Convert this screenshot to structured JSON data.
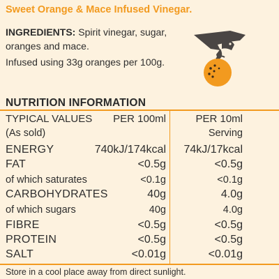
{
  "title": "Sweet Orange & Mace Infused Vinegar.",
  "ingredients": {
    "label": "INGREDIENTS:",
    "text": " Spirit vinegar, sugar, oranges and mace."
  },
  "infused_note": "Infused using 33g oranges per 100g.",
  "nutrition": {
    "heading": "NUTRITION INFORMATION",
    "header": {
      "name": "TYPICAL VALUES",
      "per100": "PER 100ml",
      "per10": "PER 10ml"
    },
    "subheader": {
      "name": "(As sold)",
      "per100": "",
      "per10": "Serving"
    },
    "rows": [
      {
        "name": "ENERGY",
        "per100": "740kJ/174kcal",
        "per10": "74kJ/17kcal"
      },
      {
        "name": "FAT",
        "per100": "<0.5g",
        "per10": "<0.5g"
      },
      {
        "name": "of which saturates",
        "per100": "<0.1g",
        "per10": "<0.1g"
      },
      {
        "name": "CARBOHYDRATES",
        "per100": "40g",
        "per10": "4.0g"
      },
      {
        "name": "of which sugars",
        "per100": "40g",
        "per10": "4.0g"
      },
      {
        "name": "FIBRE",
        "per100": "<0.5g",
        "per10": "<0.5g"
      },
      {
        "name": "PROTEIN",
        "per100": "<0.5g",
        "per10": "<0.5g"
      },
      {
        "name": "SALT",
        "per100": "<0.01g",
        "per10": "<0.01g"
      }
    ]
  },
  "storage": "Store in a cool place away from direct sunlight.",
  "colors": {
    "background": "#fdf2df",
    "accent": "#f29a1f",
    "text": "#2e2e2e",
    "bird": "#4a4644"
  },
  "icons": {
    "illustration": "pelican-holding-orange-icon"
  }
}
